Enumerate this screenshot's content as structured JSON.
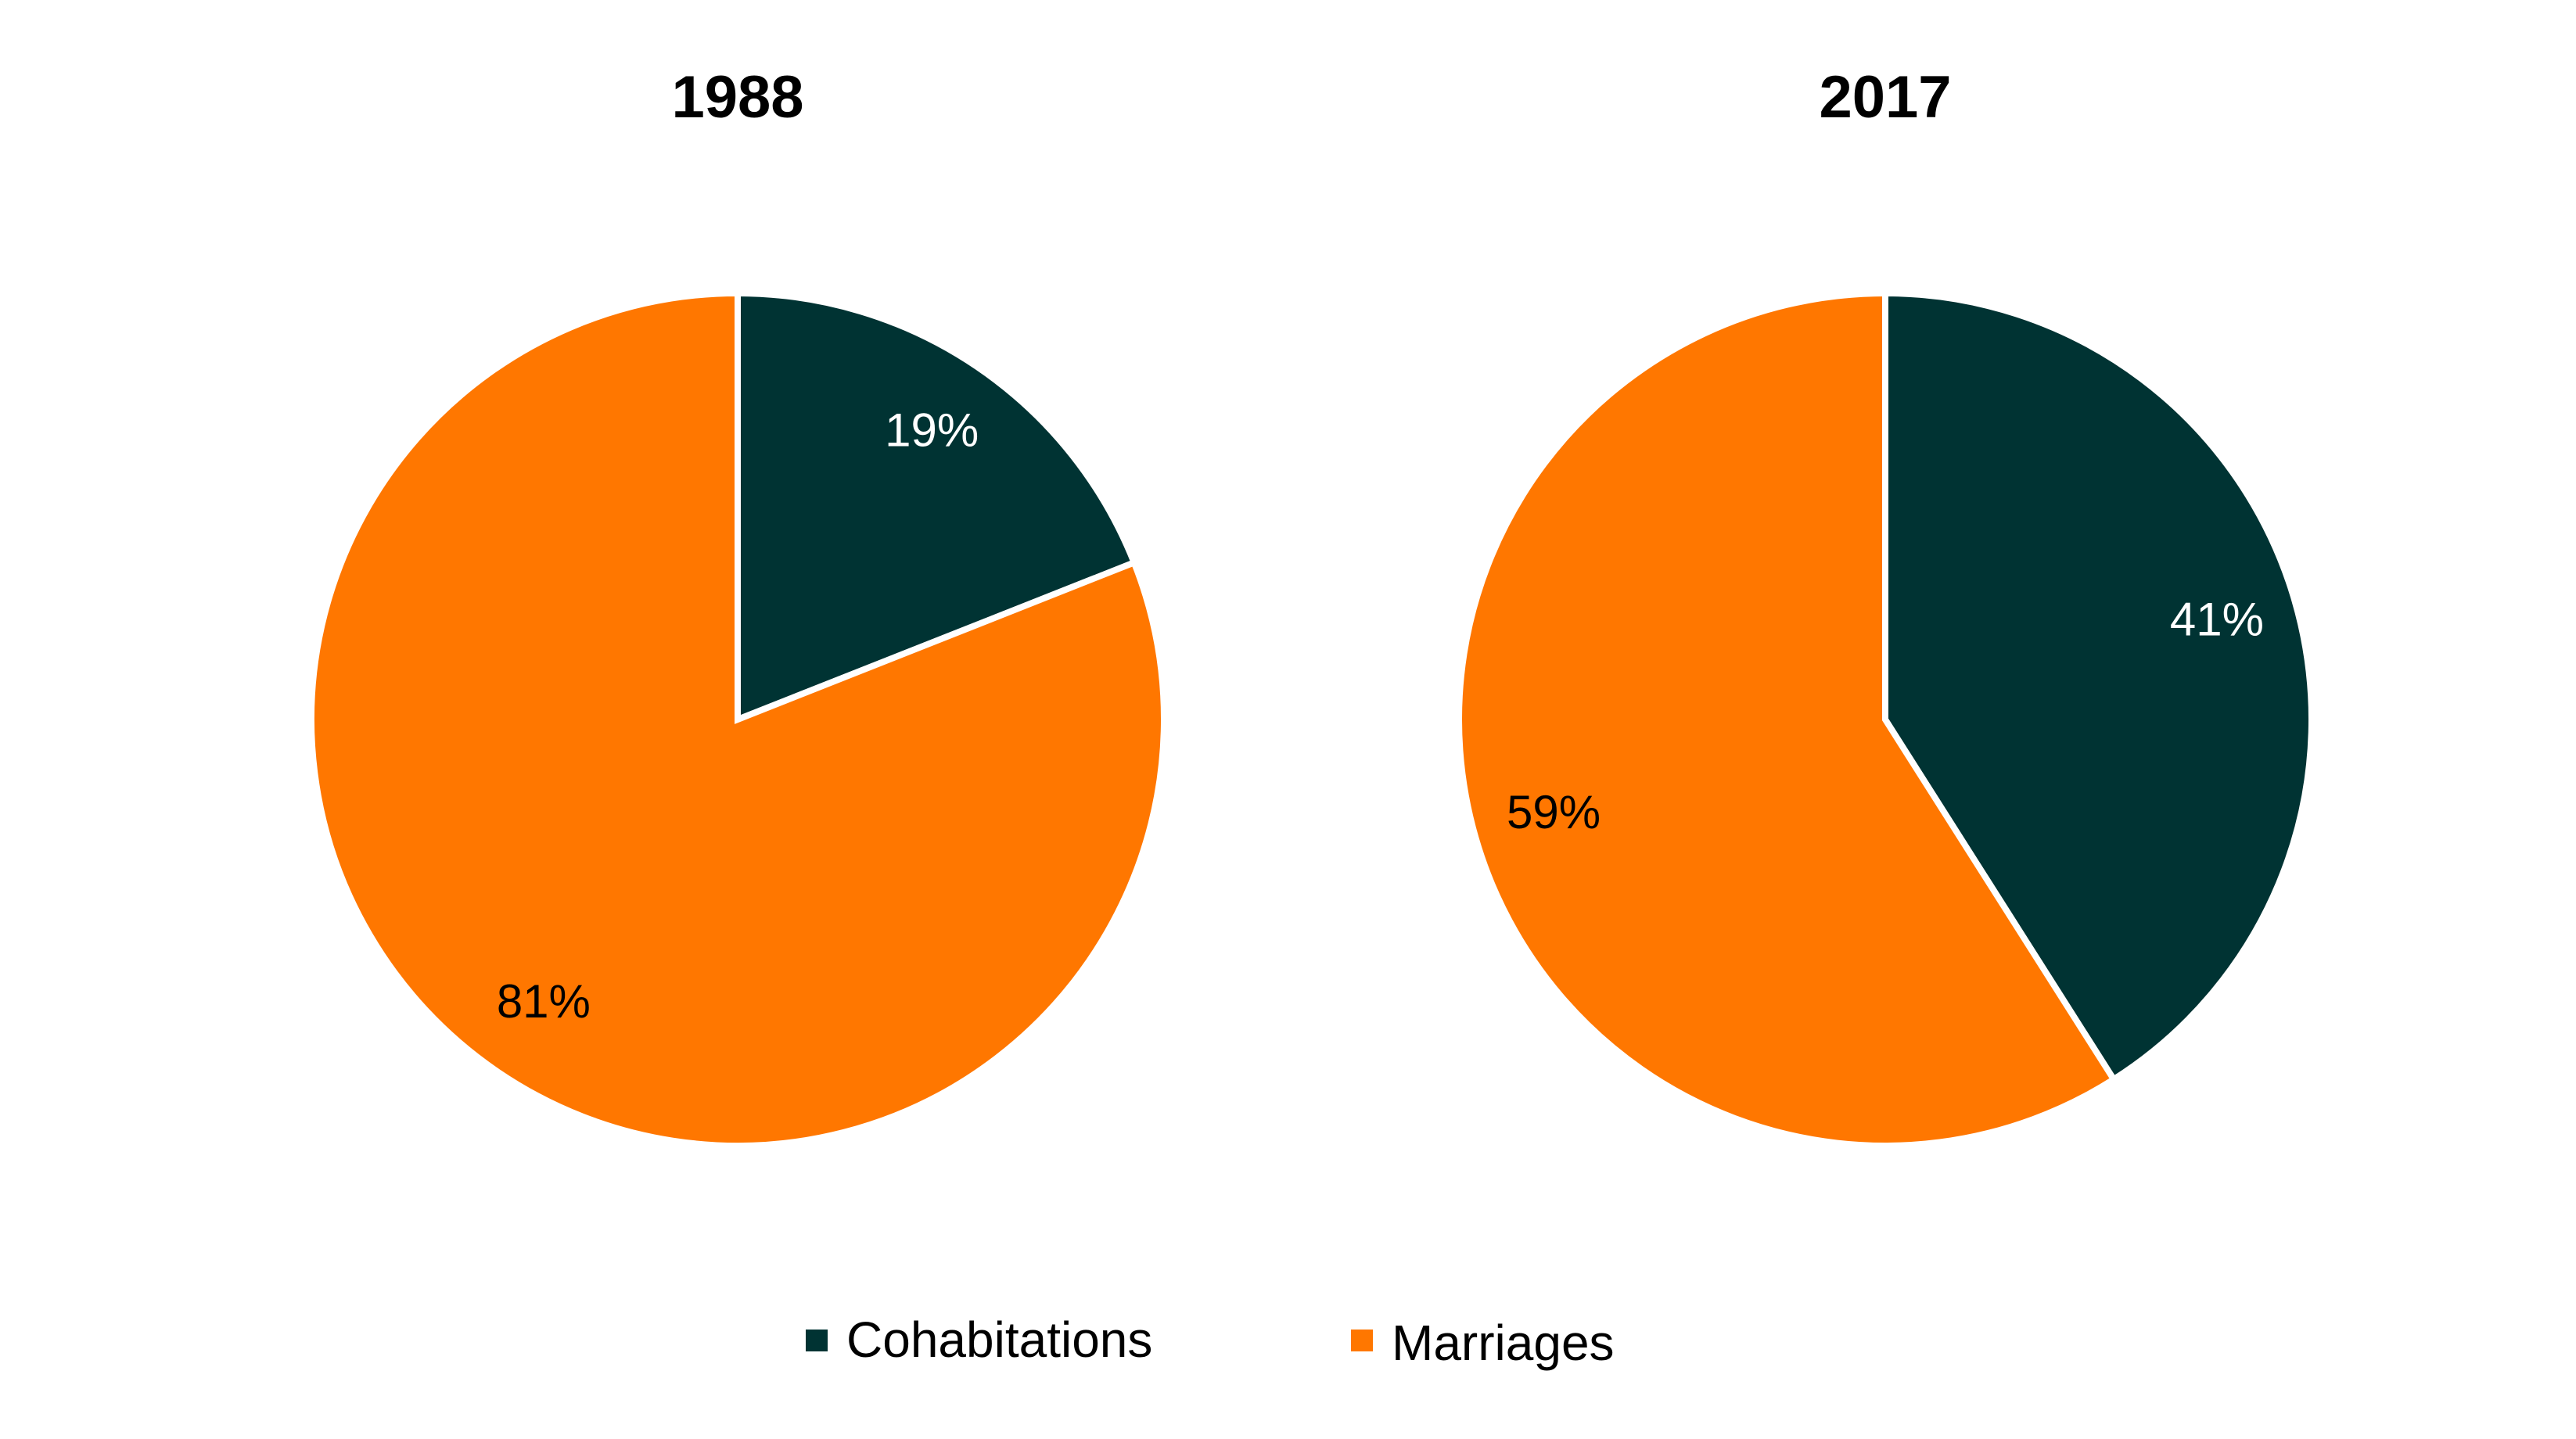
{
  "chart_data": [
    {
      "type": "pie",
      "title": "1988",
      "slices": [
        {
          "label": "Cohabitations",
          "value": 19,
          "text": "19%"
        },
        {
          "label": "Marriages",
          "value": 81,
          "text": "81%"
        }
      ]
    },
    {
      "type": "pie",
      "title": "2017",
      "slices": [
        {
          "label": "Cohabitations",
          "value": 41,
          "text": "41%"
        },
        {
          "label": "Marriages",
          "value": 59,
          "text": "59%"
        }
      ]
    }
  ],
  "legend": {
    "placement": "bottom",
    "items": [
      {
        "label": "Cohabitations",
        "color": "#003333",
        "text_color": "#ffffff"
      },
      {
        "label": "Marriages",
        "color": "#ff7700",
        "text_color": "#000000"
      }
    ]
  }
}
